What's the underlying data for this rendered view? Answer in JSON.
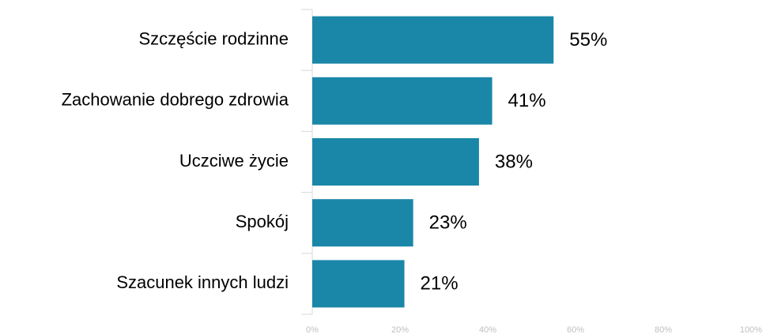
{
  "chart_data": {
    "type": "bar",
    "orientation": "horizontal",
    "categories": [
      "Szczęście rodzinne",
      "Zachowanie dobrego zdrowia",
      "Uczciwe życie",
      "Spokój",
      "Szacunek innych ludzi"
    ],
    "values": [
      55,
      41,
      38,
      23,
      21
    ],
    "value_labels": [
      "55%",
      "41%",
      "38%",
      "23%",
      "21%"
    ],
    "color": "#1a87a8",
    "xlim": [
      0,
      100
    ],
    "xticks": [
      {
        "value": 0,
        "label": "0%"
      },
      {
        "value": 20,
        "label": "20%"
      },
      {
        "value": 40,
        "label": "40%"
      },
      {
        "value": 60,
        "label": "60%"
      },
      {
        "value": 80,
        "label": "80%"
      },
      {
        "value": 100,
        "label": "100%"
      }
    ],
    "grid": false
  }
}
